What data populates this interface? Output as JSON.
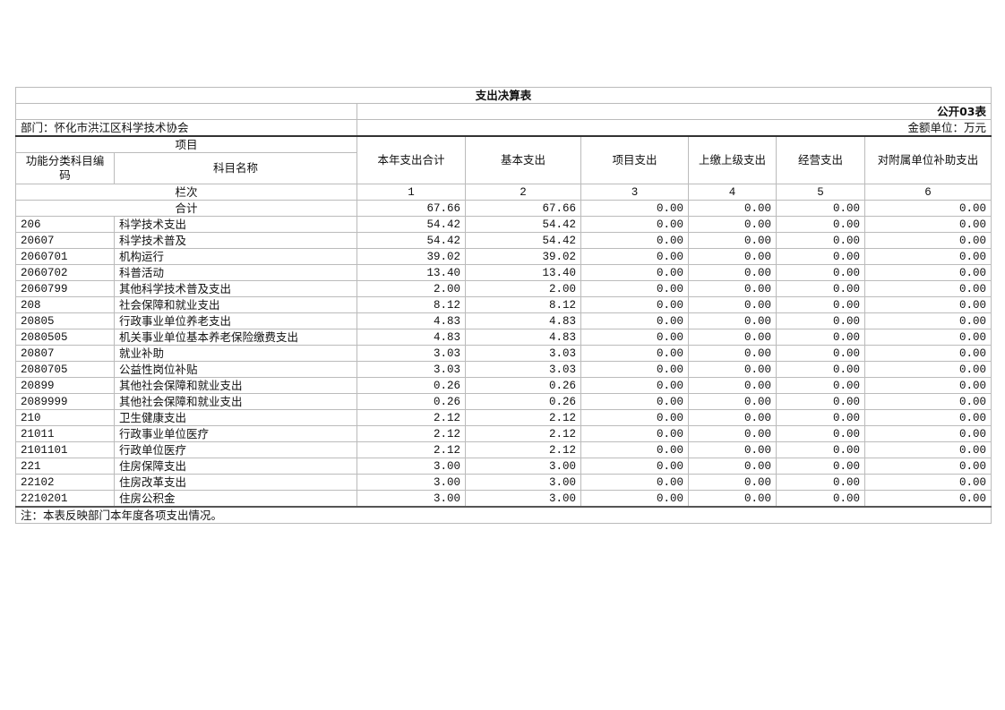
{
  "title": "支出决算表",
  "form_no": "公开03表",
  "department": "部门：怀化市洪江区科学技术协会",
  "unit": "金额单位：万元",
  "headers": {
    "item": "项目",
    "code": "功能分类科目编码",
    "name": "科目名称",
    "total": "本年支出合计",
    "basic": "基本支出",
    "project": "项目支出",
    "upper": "上缴上级支出",
    "business": "经营支出",
    "subsidy": "对附属单位补助支出"
  },
  "column_index": {
    "label": "栏次",
    "nums": [
      "1",
      "2",
      "3",
      "4",
      "5",
      "6"
    ]
  },
  "sum_row": {
    "label": "合计",
    "values": [
      "67.66",
      "67.66",
      "0.00",
      "0.00",
      "0.00",
      "0.00"
    ]
  },
  "rows": [
    {
      "code": "206",
      "name": "科学技术支出",
      "values": [
        "54.42",
        "54.42",
        "0.00",
        "0.00",
        "0.00",
        "0.00"
      ]
    },
    {
      "code": "20607",
      "name": "科学技术普及",
      "values": [
        "54.42",
        "54.42",
        "0.00",
        "0.00",
        "0.00",
        "0.00"
      ]
    },
    {
      "code": "2060701",
      "name": "机构运行",
      "values": [
        "39.02",
        "39.02",
        "0.00",
        "0.00",
        "0.00",
        "0.00"
      ]
    },
    {
      "code": "2060702",
      "name": "科普活动",
      "values": [
        "13.40",
        "13.40",
        "0.00",
        "0.00",
        "0.00",
        "0.00"
      ]
    },
    {
      "code": "2060799",
      "name": "其他科学技术普及支出",
      "values": [
        "2.00",
        "2.00",
        "0.00",
        "0.00",
        "0.00",
        "0.00"
      ]
    },
    {
      "code": "208",
      "name": "社会保障和就业支出",
      "values": [
        "8.12",
        "8.12",
        "0.00",
        "0.00",
        "0.00",
        "0.00"
      ]
    },
    {
      "code": "20805",
      "name": "行政事业单位养老支出",
      "values": [
        "4.83",
        "4.83",
        "0.00",
        "0.00",
        "0.00",
        "0.00"
      ]
    },
    {
      "code": "2080505",
      "name": "机关事业单位基本养老保险缴费支出",
      "values": [
        "4.83",
        "4.83",
        "0.00",
        "0.00",
        "0.00",
        "0.00"
      ]
    },
    {
      "code": "20807",
      "name": "就业补助",
      "values": [
        "3.03",
        "3.03",
        "0.00",
        "0.00",
        "0.00",
        "0.00"
      ]
    },
    {
      "code": "2080705",
      "name": "公益性岗位补贴",
      "values": [
        "3.03",
        "3.03",
        "0.00",
        "0.00",
        "0.00",
        "0.00"
      ]
    },
    {
      "code": "20899",
      "name": "其他社会保障和就业支出",
      "values": [
        "0.26",
        "0.26",
        "0.00",
        "0.00",
        "0.00",
        "0.00"
      ]
    },
    {
      "code": "2089999",
      "name": "其他社会保障和就业支出",
      "values": [
        "0.26",
        "0.26",
        "0.00",
        "0.00",
        "0.00",
        "0.00"
      ]
    },
    {
      "code": "210",
      "name": "卫生健康支出",
      "values": [
        "2.12",
        "2.12",
        "0.00",
        "0.00",
        "0.00",
        "0.00"
      ]
    },
    {
      "code": "21011",
      "name": "行政事业单位医疗",
      "values": [
        "2.12",
        "2.12",
        "0.00",
        "0.00",
        "0.00",
        "0.00"
      ]
    },
    {
      "code": "2101101",
      "name": "行政单位医疗",
      "values": [
        "2.12",
        "2.12",
        "0.00",
        "0.00",
        "0.00",
        "0.00"
      ]
    },
    {
      "code": "221",
      "name": "住房保障支出",
      "values": [
        "3.00",
        "3.00",
        "0.00",
        "0.00",
        "0.00",
        "0.00"
      ]
    },
    {
      "code": "22102",
      "name": "住房改革支出",
      "values": [
        "3.00",
        "3.00",
        "0.00",
        "0.00",
        "0.00",
        "0.00"
      ]
    },
    {
      "code": "2210201",
      "name": "住房公积金",
      "values": [
        "3.00",
        "3.00",
        "0.00",
        "0.00",
        "0.00",
        "0.00"
      ]
    }
  ],
  "note": "注：本表反映部门本年度各项支出情况。"
}
